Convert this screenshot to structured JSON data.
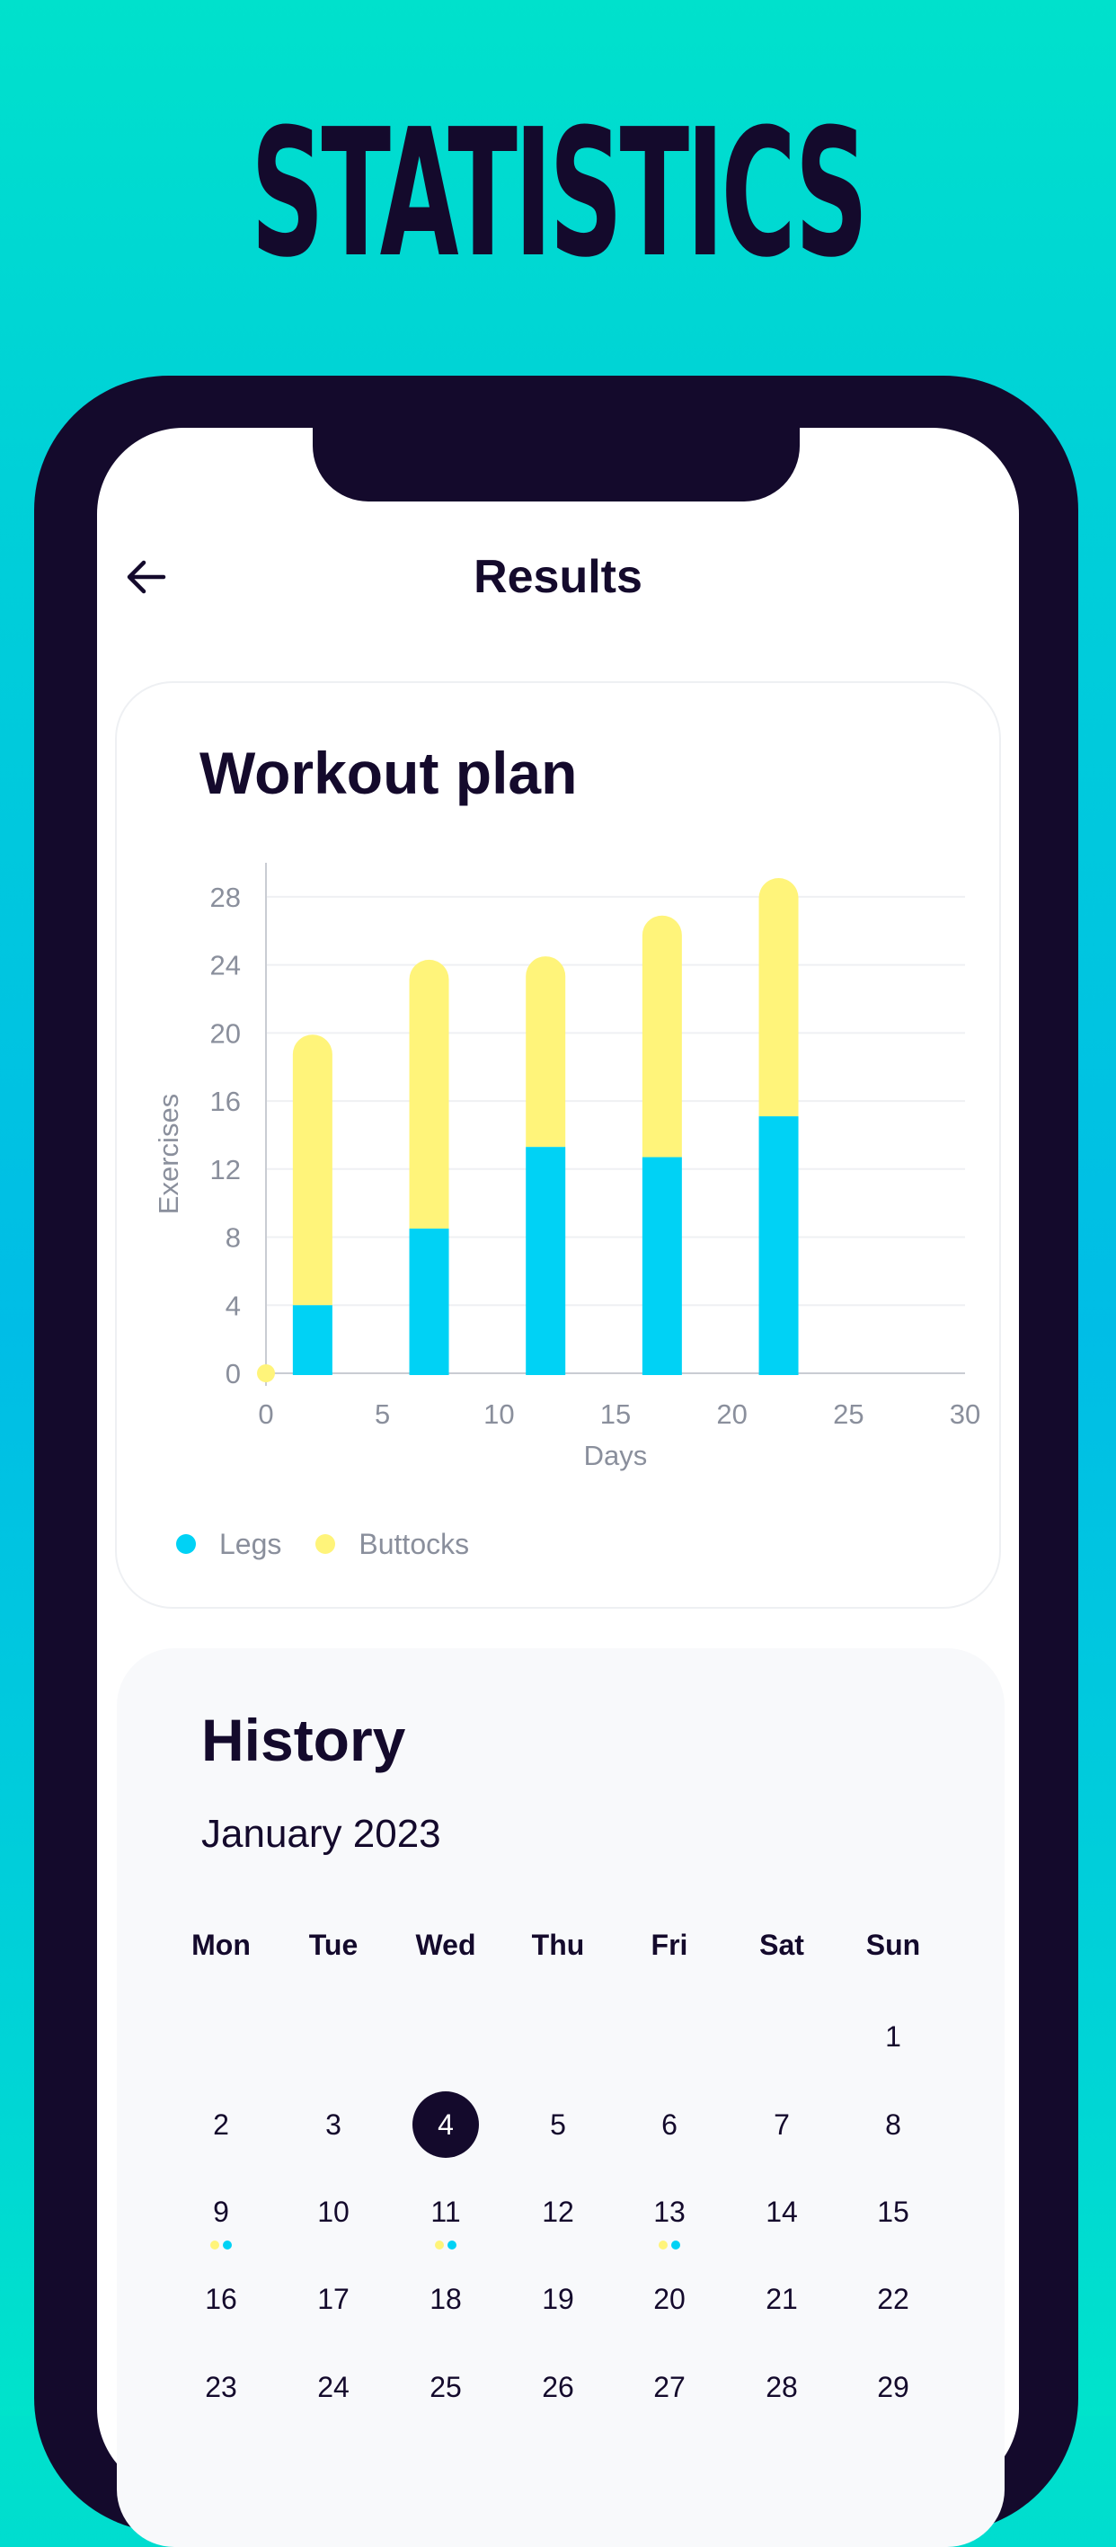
{
  "header": {
    "title": "STATISTICS"
  },
  "nav": {
    "title": "Results",
    "back_icon": "arrow-left-icon"
  },
  "colors": {
    "legs": "#00D2F5",
    "buttocks": "#FFF47A",
    "dark": "#140A2C",
    "muted": "#8A8F9C"
  },
  "workout_card": {
    "title": "Workout plan",
    "legend": [
      {
        "label": "Legs"
      },
      {
        "label": "Buttocks"
      }
    ]
  },
  "chart_data": {
    "type": "bar",
    "stacked": true,
    "xlabel": "Days",
    "ylabel": "Exercises",
    "xlim": [
      0,
      30
    ],
    "ylim": [
      0,
      30
    ],
    "x_ticks": [
      0,
      5,
      10,
      15,
      20,
      25,
      30
    ],
    "y_ticks": [
      0,
      4,
      8,
      12,
      16,
      20,
      24,
      28
    ],
    "x": [
      2,
      7,
      12,
      17,
      22
    ],
    "series": [
      {
        "name": "Legs",
        "values": [
          4,
          8.5,
          13.3,
          12.7,
          15.1
        ]
      },
      {
        "name": "Buttocks",
        "values": [
          15.9,
          15.8,
          11.2,
          14.2,
          14.0
        ]
      }
    ],
    "grid": "horizontal",
    "legend_position": "bottom-left"
  },
  "history": {
    "title": "History",
    "month": "January 2023",
    "weekdays": [
      "Mon",
      "Tue",
      "Wed",
      "Thu",
      "Fri",
      "Sat",
      "Sun"
    ],
    "first_weekday_index": 6,
    "selected_day": 4,
    "marked_days": [
      9,
      11,
      13
    ],
    "days": [
      "1",
      "2",
      "3",
      "4",
      "5",
      "6",
      "7",
      "8",
      "9",
      "10",
      "11",
      "12",
      "13",
      "14",
      "15",
      "16",
      "17",
      "18",
      "19",
      "20",
      "21",
      "22",
      "23",
      "24",
      "25",
      "26",
      "27",
      "28",
      "29"
    ]
  }
}
